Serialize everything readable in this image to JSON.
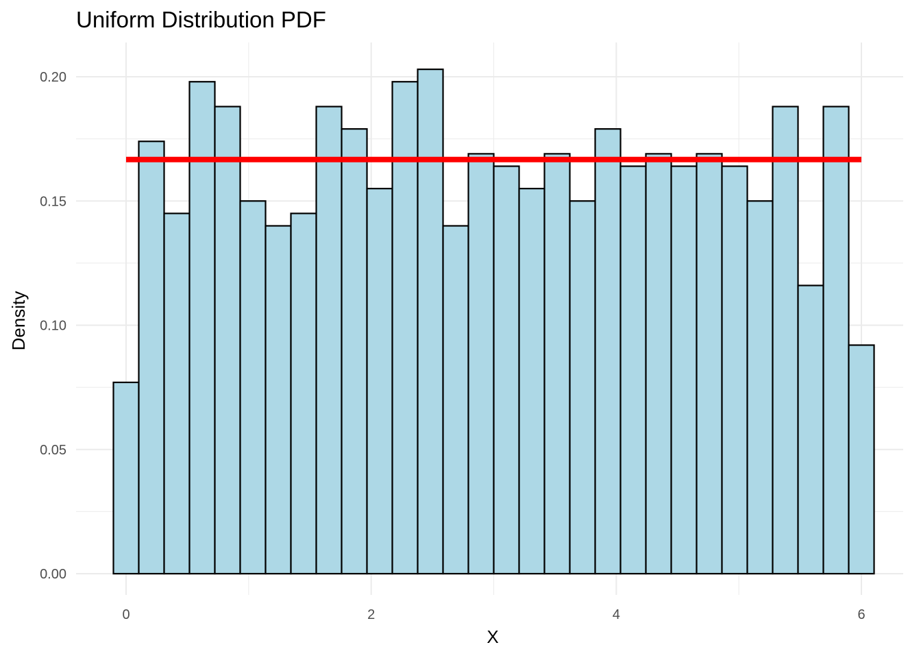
{
  "chart_data": {
    "type": "bar",
    "title": "Uniform Distribution PDF",
    "xlabel": "X",
    "ylabel": "Density",
    "xlim": [
      -0.1,
      6.1
    ],
    "ylim": [
      0,
      0.21
    ],
    "x_ticks": [
      0,
      2,
      4,
      6
    ],
    "x_tick_labels": [
      "0",
      "2",
      "4",
      "6"
    ],
    "y_ticks": [
      0,
      0.05,
      0.1,
      0.15,
      0.2
    ],
    "y_tick_labels": [
      "0.00",
      "0.05",
      "0.10",
      "0.15",
      "0.20"
    ],
    "grid": true,
    "bin_start": -0.1034,
    "bin_width": 0.2069,
    "values": [
      0.077,
      0.174,
      0.145,
      0.198,
      0.188,
      0.15,
      0.14,
      0.145,
      0.188,
      0.179,
      0.155,
      0.198,
      0.203,
      0.14,
      0.169,
      0.164,
      0.155,
      0.169,
      0.15,
      0.179,
      0.164,
      0.169,
      0.164,
      0.169,
      0.164,
      0.15,
      0.188,
      0.116,
      0.188,
      0.092
    ],
    "reference_line": {
      "y": 0.1667,
      "x_range": [
        0,
        6
      ],
      "color": "#ff0000"
    },
    "bar_fill": "#add8e6",
    "bar_stroke": "#000000"
  }
}
